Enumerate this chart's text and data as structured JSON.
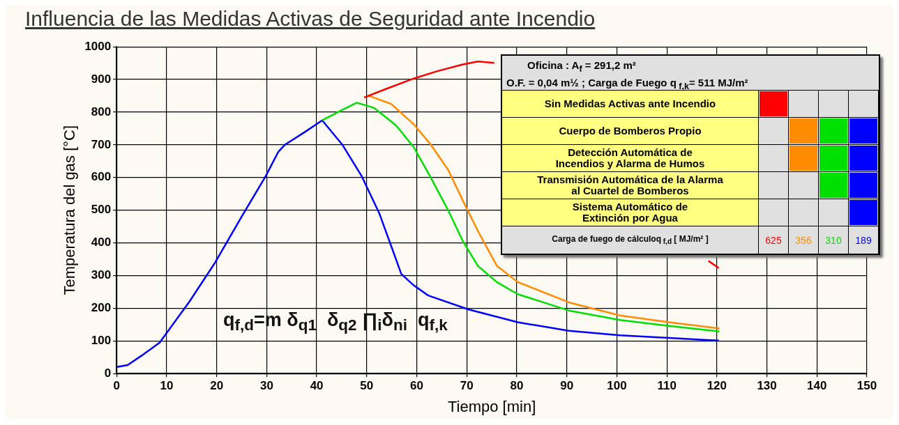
{
  "chart_data": {
    "type": "line",
    "title": "Influencia de las Medidas Activas de Seguridad ante Incendio",
    "xlabel": "Tiempo [min]",
    "ylabel": "Temperatura del gas [°C]",
    "xlim": [
      0,
      150
    ],
    "xticks": [
      0,
      10,
      20,
      30,
      40,
      50,
      60,
      70,
      80,
      90,
      100,
      110,
      120,
      130,
      140,
      150
    ],
    "ylim": [
      0,
      1000
    ],
    "yticks": [
      0,
      100,
      200,
      300,
      400,
      500,
      600,
      700,
      800,
      900,
      1000
    ],
    "grid": true,
    "series": [
      {
        "color": "#ff0000",
        "x": [
          49.5,
          54,
          59.4,
          64,
          69.2,
          72.2,
          75.5,
          100,
          118.3,
          120.4
        ],
        "values": [
          845,
          872,
          903,
          925,
          946,
          955,
          951,
          null,
          345,
          323
        ]
      },
      {
        "color": "#ff8c00",
        "x": [
          49.5,
          50.5,
          54.9,
          59.4,
          62.8,
          66.3,
          69.2,
          72.2,
          76,
          80.2,
          90.4,
          100.6,
          110.4,
          120.5
        ],
        "values": [
          845,
          850,
          825,
          763,
          701,
          623,
          530,
          437,
          330,
          280,
          218,
          178,
          157,
          138
        ]
      },
      {
        "color": "#00e000",
        "x": [
          41.1,
          45,
          48,
          51.5,
          55.9,
          59.4,
          62.8,
          66.3,
          69.2,
          72.2,
          76,
          80.2,
          90.4,
          100.6,
          110.4,
          120.5
        ],
        "values": [
          775,
          806,
          829,
          813,
          759,
          693,
          600,
          499,
          406,
          330,
          280,
          243,
          193,
          164,
          146,
          129
        ]
      },
      {
        "color": "#0000ff",
        "x": [
          0,
          2.2,
          5,
          8.6,
          14.5,
          19.7,
          25.1,
          29.8,
          32.3,
          33.7,
          37.7,
          41.1,
          45.1,
          49,
          52.5,
          54.9,
          56.9,
          59.4,
          62.3,
          70.4,
          80.2,
          90.4,
          100.6,
          110.4,
          120.4
        ],
        "values": [
          20,
          26,
          55,
          95,
          219,
          340,
          483,
          604,
          678,
          701,
          740,
          775,
          701,
          604,
          491,
          390,
          305,
          270,
          239,
          196,
          157,
          131,
          117,
          109,
          101
        ]
      }
    ],
    "annotations": [
      "Oficina : A$_{f}$ = 291,2 m²",
      "O.F. = 0,04 m½ ;  Carga de Fuego q$_{ f,k}$= 511 MJ/m²",
      "Sin Medidas Activas ante Incendio",
      "Cuerpo de Bomberos Propio",
      "Detección Automática de\nIncendios y Alarma de Humos",
      "Transmisión Automática de la Alarma\nal Cuartel de Bomberos",
      "Sistema Automático de\nExtinción por Agua",
      "Carga de fuego de cálculoq$_{ f,d}$ [ MJ/m² ]",
      "625",
      "356",
      "310",
      "189",
      "q$_{f,d}$=m δ$_{q1}$  δ$_{q2}$ ∏$_{i}$δ$_{ni}$  q$_{f,k}$"
    ]
  }
}
